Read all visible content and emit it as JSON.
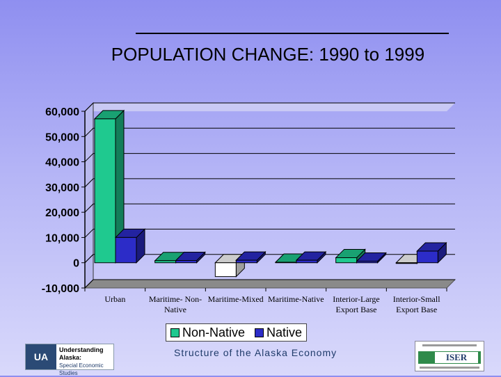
{
  "title": "POPULATION CHANGE: 1990 to 1999",
  "legend": {
    "items": [
      {
        "label": "Non-Native",
        "color": "#1fc98f"
      },
      {
        "label": "Native",
        "color": "#2c2cc8"
      }
    ]
  },
  "footer": {
    "text": "Structure of the Alaska Economy"
  },
  "logos": {
    "left": {
      "mark": "UA",
      "name": "Understanding Alaska:",
      "subtitle": "Special Economic Studies"
    },
    "right": {
      "name": "ISER"
    }
  },
  "chart_data": {
    "type": "bar",
    "title": "POPULATION CHANGE: 1990 to 1999",
    "categories": [
      "Urban",
      "Maritime-Non-Native",
      "Maritime-Mixed",
      "Maritime-Native",
      "Interior-Large Export Base",
      "Interior-Small Export Base"
    ],
    "category_label_lines": [
      [
        "Urban"
      ],
      [
        "Maritime- Non-",
        "Native"
      ],
      [
        "Maritime-Mixed"
      ],
      [
        "Maritime-Native"
      ],
      [
        "Interior-Large",
        "Export Base"
      ],
      [
        "Interior-Small",
        "Export Base"
      ]
    ],
    "series": [
      {
        "name": "Non-Native",
        "color": "#1fc98f",
        "values": [
          57000,
          800,
          -5500,
          200,
          2000,
          -300
        ]
      },
      {
        "name": "Native",
        "color": "#2c2cc8",
        "values": [
          10000,
          900,
          1000,
          1000,
          600,
          4600
        ]
      }
    ],
    "negative_fill": "#ffffff",
    "ylim": [
      -10000,
      60000
    ],
    "yticks": [
      -10000,
      0,
      10000,
      20000,
      30000,
      40000,
      50000,
      60000
    ],
    "ytick_labels": [
      "-10,000",
      "0",
      "10,000",
      "20,000",
      "30,000",
      "40,000",
      "50,000",
      "60,000"
    ],
    "grid": true,
    "three_d": true,
    "legend_position": "bottom"
  }
}
